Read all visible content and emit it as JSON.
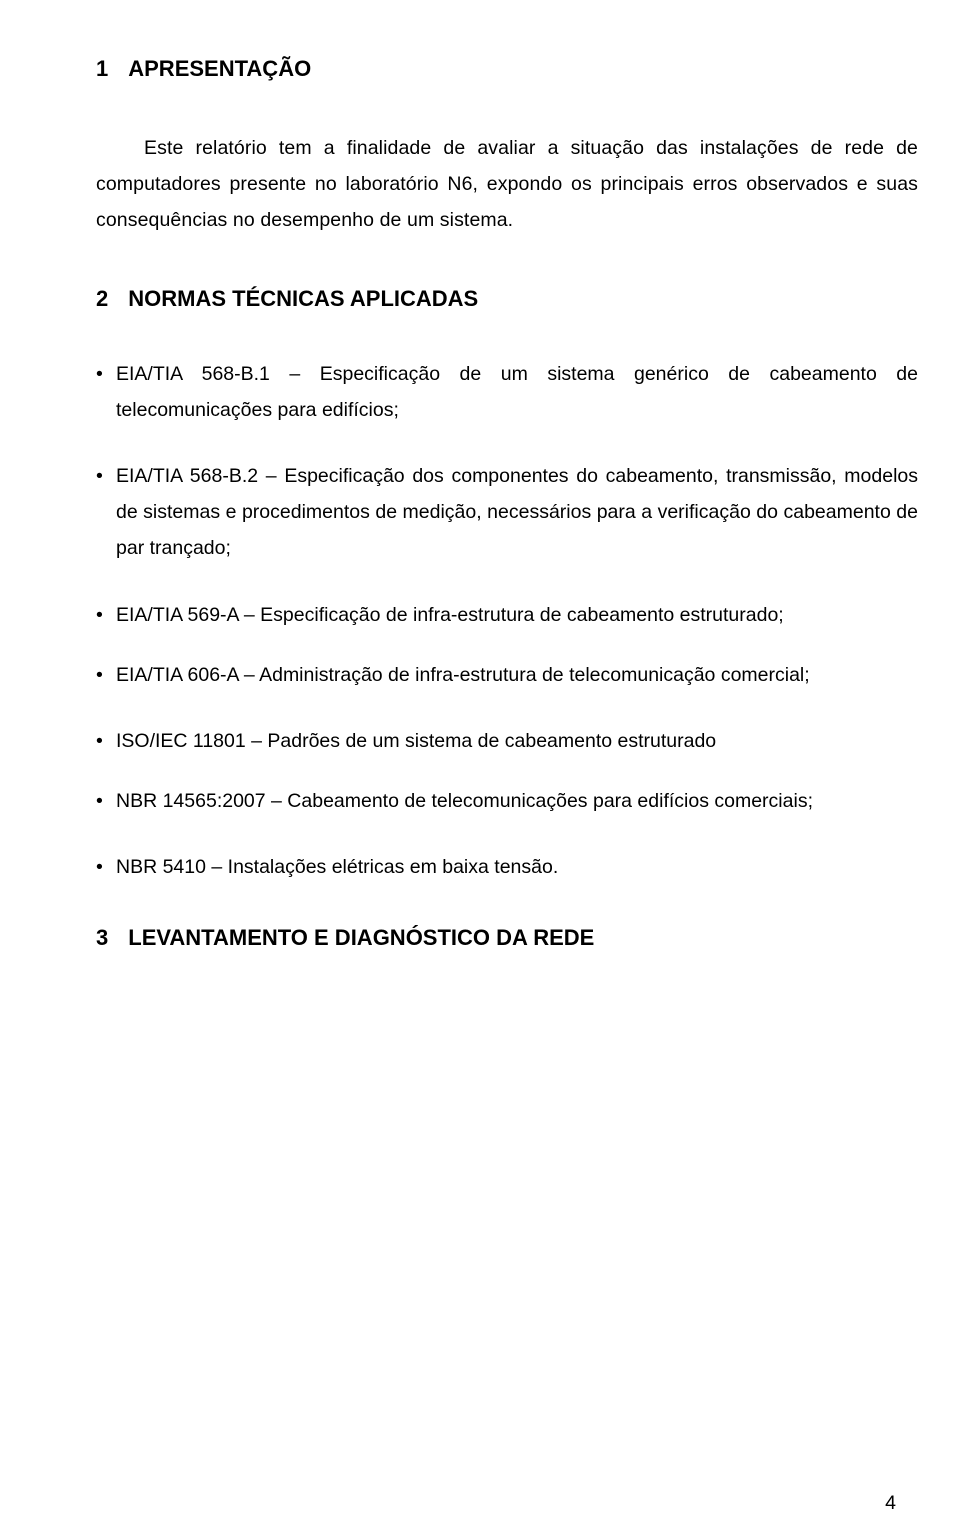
{
  "section1": {
    "number": "1",
    "title": "APRESENTAÇÃO",
    "paragraph": "Este relatório tem a finalidade de avaliar a situação das instalações de rede de computadores presente no laboratório N6, expondo os principais erros observados e suas consequências no desempenho de um sistema."
  },
  "section2": {
    "number": "2",
    "title": "NORMAS TÉCNICAS APLICADAS",
    "items": [
      "EIA/TIA 568-B.1 – Especificação de um sistema genérico de cabeamento de telecomunicações para edifícios;",
      "EIA/TIA 568-B.2 – Especificação dos componentes do cabeamento, transmissão, modelos de sistemas e procedimentos de medição, necessários para a verificação do cabeamento de par trançado;",
      "EIA/TIA 569-A – Especificação de infra-estrutura de cabeamento estruturado;",
      "EIA/TIA 606-A – Administração de infra-estrutura de telecomunicação comercial;",
      "ISO/IEC 11801 – Padrões de um sistema de cabeamento estruturado",
      "NBR 14565:2007 – Cabeamento de telecomunicações para edifícios comerciais;",
      "NBR 5410 – Instalações elétricas em baixa tensão."
    ]
  },
  "section3": {
    "number": "3",
    "title": "LEVANTAMENTO E DIAGNÓSTICO DA REDE"
  },
  "page_number": "4"
}
